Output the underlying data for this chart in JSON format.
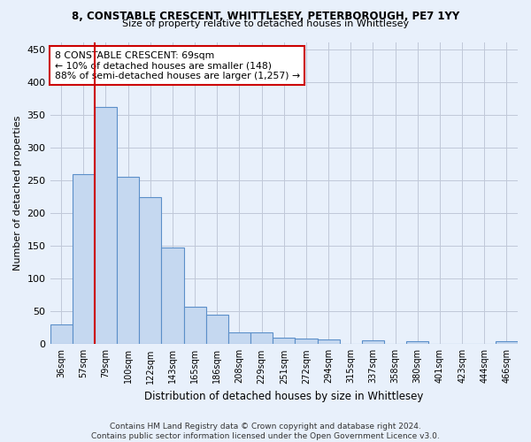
{
  "title1": "8, CONSTABLE CRESCENT, WHITTLESEY, PETERBOROUGH, PE7 1YY",
  "title2": "Size of property relative to detached houses in Whittlesey",
  "xlabel": "Distribution of detached houses by size in Whittlesey",
  "ylabel": "Number of detached properties",
  "categories": [
    "36sqm",
    "57sqm",
    "79sqm",
    "100sqm",
    "122sqm",
    "143sqm",
    "165sqm",
    "186sqm",
    "208sqm",
    "229sqm",
    "251sqm",
    "272sqm",
    "294sqm",
    "315sqm",
    "337sqm",
    "358sqm",
    "380sqm",
    "401sqm",
    "423sqm",
    "444sqm",
    "466sqm"
  ],
  "values": [
    30,
    260,
    362,
    256,
    225,
    148,
    57,
    45,
    18,
    18,
    10,
    9,
    7,
    0,
    6,
    0,
    4,
    0,
    0,
    0,
    4
  ],
  "bar_color": "#c5d8f0",
  "bar_edge_color": "#5b8fc9",
  "vline_x": 1.5,
  "vline_color": "#cc0000",
  "annotation_text": "8 CONSTABLE CRESCENT: 69sqm\n← 10% of detached houses are smaller (148)\n88% of semi-detached houses are larger (1,257) →",
  "annotation_box_color": "#ffffff",
  "annotation_box_edge": "#cc0000",
  "footer": "Contains HM Land Registry data © Crown copyright and database right 2024.\nContains public sector information licensed under the Open Government Licence v3.0.",
  "ylim": [
    0,
    462
  ],
  "background_color": "#e8f0fb",
  "plot_bg_color": "#e8f0fb",
  "grid_color": "#c0c8d8",
  "title1_fontsize": 8.5,
  "title2_fontsize": 8.0
}
